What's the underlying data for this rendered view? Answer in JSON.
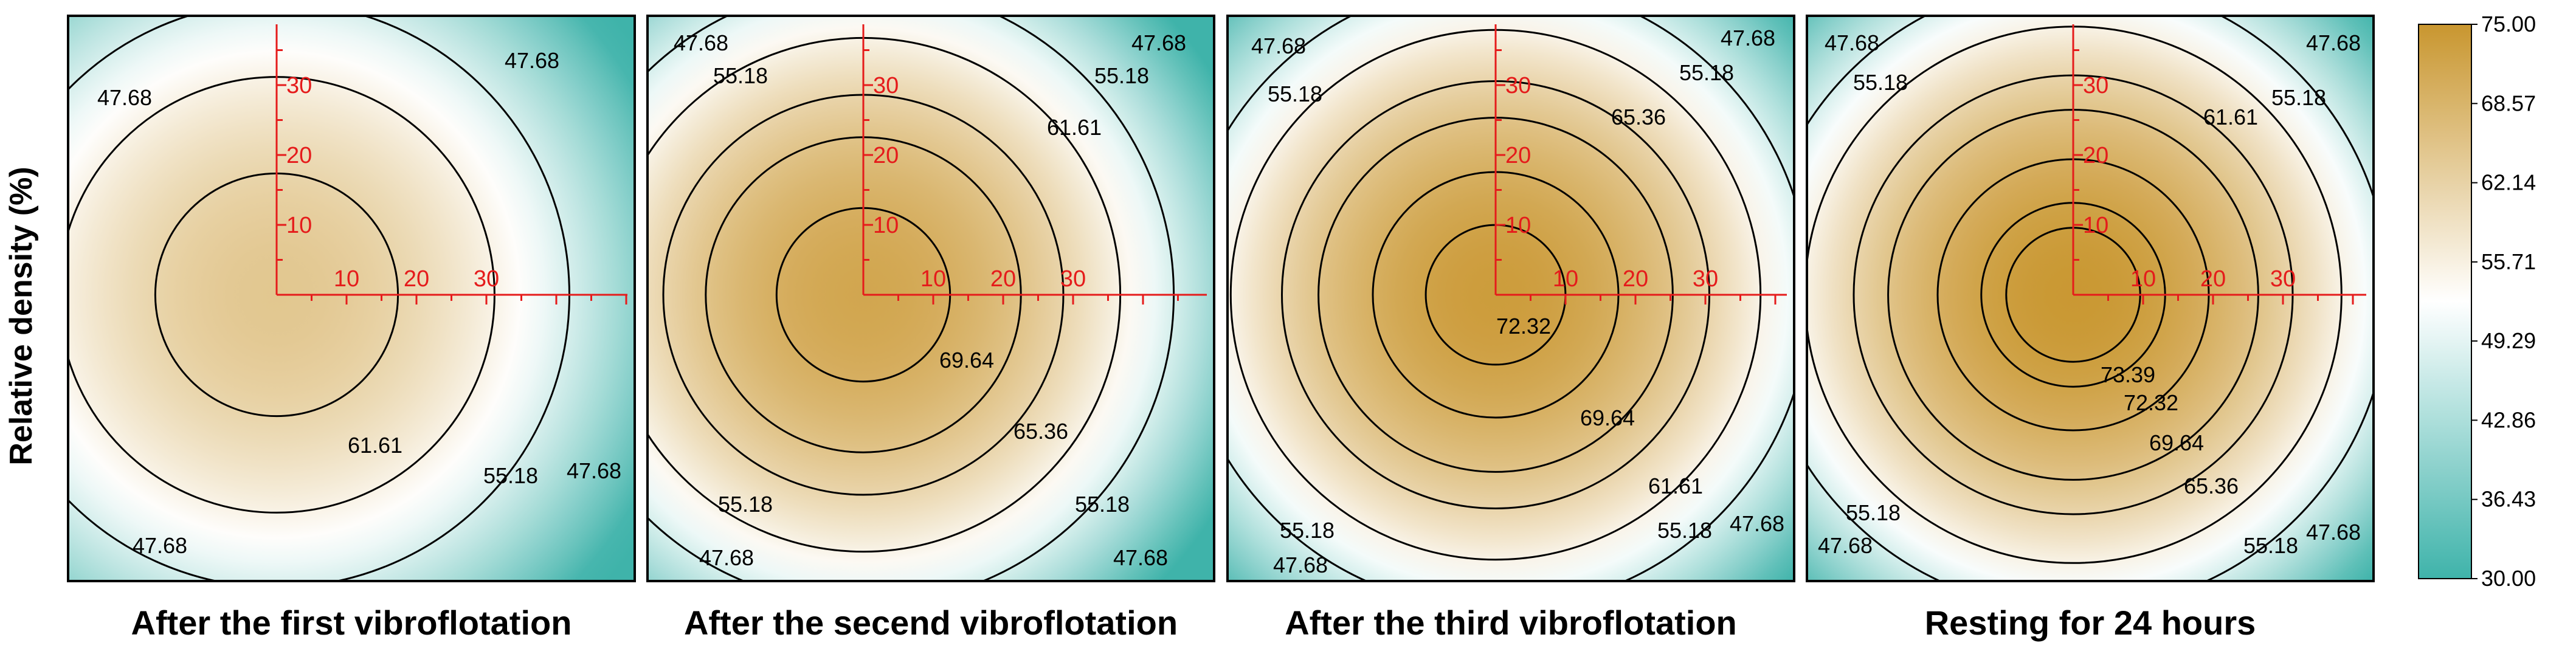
{
  "chart_data": {
    "type": "heatmap",
    "ylabel": "Relative density (%)",
    "axis_ticks": [
      "10",
      "20",
      "30"
    ],
    "colorbar": {
      "min": 30.0,
      "max": 75.0,
      "ticks": [
        "75.00",
        "68.57",
        "62.14",
        "55.71",
        "49.29",
        "42.86",
        "36.43",
        "30.00"
      ],
      "colors": [
        "#3fb3aa",
        "#ffffff",
        "#c9962f"
      ]
    },
    "panels": [
      {
        "title": "After the first vibroflotation",
        "center_value": 64.5,
        "levels": [
          61.61,
          55.18,
          47.68
        ],
        "contour_labels": [
          "47.68",
          "47.68",
          "61.61",
          "55.18",
          "47.68",
          "47.68"
        ]
      },
      {
        "title": "After the secend vibroflotation",
        "center_value": 71.5,
        "levels": [
          69.64,
          65.36,
          61.61,
          55.18,
          47.68
        ],
        "contour_labels": [
          "47.68",
          "55.18",
          "47.68",
          "55.18",
          "61.61",
          "69.64",
          "65.36",
          "55.18",
          "55.18",
          "47.68",
          "47.68"
        ]
      },
      {
        "title": "After the third vibroflotation",
        "center_value": 73.6,
        "levels": [
          72.32,
          69.64,
          65.36,
          61.61,
          55.18,
          47.68
        ],
        "contour_labels": [
          "47.68",
          "55.18",
          "47.68",
          "55.18",
          "65.36",
          "72.32",
          "69.64",
          "61.61",
          "55.18",
          "55.18",
          "47.68",
          "47.68"
        ]
      },
      {
        "title": "Resting for 24 hours",
        "center_value": 74.6,
        "levels": [
          73.39,
          72.32,
          69.64,
          65.36,
          61.61,
          55.18,
          47.68
        ],
        "contour_labels": [
          "47.68",
          "55.18",
          "47.68",
          "55.18",
          "61.61",
          "73.39",
          "72.32",
          "69.64",
          "65.36",
          "55.18",
          "47.68",
          "55.18",
          "47.68"
        ]
      }
    ]
  }
}
